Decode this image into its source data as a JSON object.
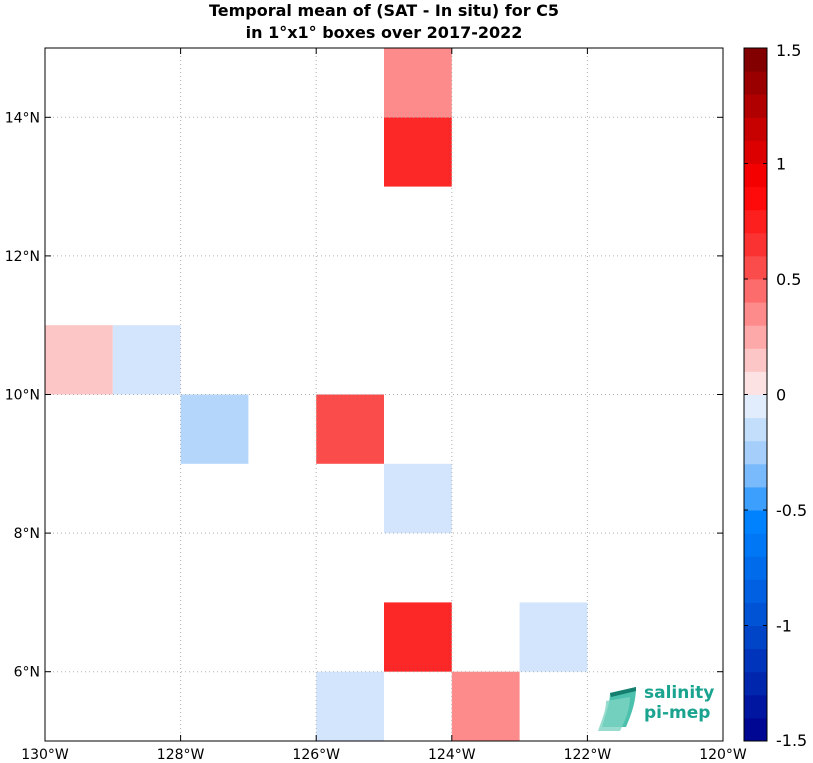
{
  "chart_data": {
    "type": "heatmap",
    "title": [
      "Temporal mean of (SAT - In situ) for C5",
      "in 1°x1° boxes over 2017-2022"
    ],
    "xlim": [
      -130,
      -120
    ],
    "ylim": [
      5,
      15
    ],
    "x_ticks": [
      {
        "value": -130,
        "label": "130°W"
      },
      {
        "value": -128,
        "label": "128°W"
      },
      {
        "value": -126,
        "label": "126°W"
      },
      {
        "value": -124,
        "label": "124°W"
      },
      {
        "value": -122,
        "label": "122°W"
      },
      {
        "value": -120,
        "label": "120°W"
      }
    ],
    "y_ticks": [
      {
        "value": 6,
        "label": "6°N"
      },
      {
        "value": 8,
        "label": "8°N"
      },
      {
        "value": 10,
        "label": "10°N"
      },
      {
        "value": 12,
        "label": "12°N"
      },
      {
        "value": 14,
        "label": "14°N"
      }
    ],
    "grid": true,
    "cells": [
      {
        "lon": -125,
        "lat": 14,
        "value": 0.35
      },
      {
        "lon": -125,
        "lat": 13,
        "value": 0.7
      },
      {
        "lon": -130,
        "lat": 10,
        "value": 0.15
      },
      {
        "lon": -129,
        "lat": 10,
        "value": -0.1
      },
      {
        "lon": -128,
        "lat": 9,
        "value": -0.2
      },
      {
        "lon": -126,
        "lat": 9,
        "value": 0.55
      },
      {
        "lon": -125,
        "lat": 8,
        "value": -0.1
      },
      {
        "lon": -125,
        "lat": 6,
        "value": 0.7
      },
      {
        "lon": -123,
        "lat": 6,
        "value": -0.1
      },
      {
        "lon": -126,
        "lat": 5,
        "value": -0.1
      },
      {
        "lon": -124,
        "lat": 5,
        "value": 0.35
      }
    ],
    "colorbar": {
      "range": [
        -1.5,
        1.5
      ],
      "ticks": [
        {
          "value": 1.5,
          "label": "1.5"
        },
        {
          "value": 1,
          "label": "1"
        },
        {
          "value": 0.5,
          "label": "0.5"
        },
        {
          "value": 0,
          "label": "0"
        },
        {
          "value": -0.5,
          "label": "-0.5"
        },
        {
          "value": -1,
          "label": "-1"
        },
        {
          "value": -1.5,
          "label": "-1.5"
        }
      ],
      "bins": 30
    }
  },
  "logo": {
    "line1": "salinity",
    "line2": "pi-mep"
  }
}
